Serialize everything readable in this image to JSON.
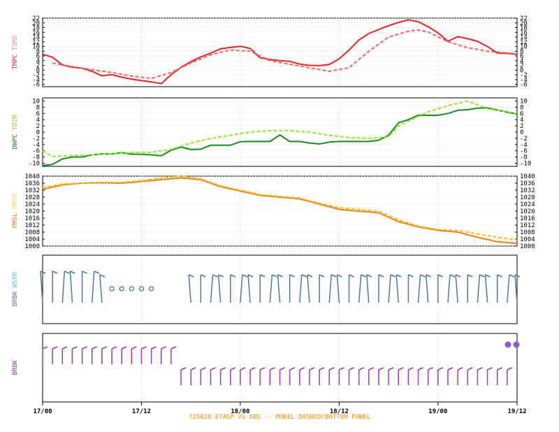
{
  "chart_data": {
    "type": "line",
    "x_ticks": [
      "17/00",
      "17/12",
      "18/00",
      "18/12",
      "19/00",
      "19/12"
    ],
    "caption": "725620  ETASP VS OBS -- MODEL DASHED/BOTTOM PANEL",
    "colors": {
      "temp": "#ee2222",
      "dew_obs": "#1a8a1a",
      "dew_model": "#88ee22",
      "pres_obs": "#f08010",
      "pres_model": "#f0c020",
      "wind_obs": "#4a76a4",
      "wind_model": "#9a38b0",
      "label_t2m": "#ff8080",
      "label_td2m": "#88dd00",
      "label_pmsm": "#ffd24d",
      "label_wsym": "#56c3f0"
    },
    "panels": [
      {
        "id": "temperature",
        "labels": [
          {
            "text": "TMPC",
            "color": "#ee2222"
          },
          {
            "text": "T2MS",
            "color": "#ff8080"
          }
        ],
        "yticks": [
          -6,
          -4,
          -2,
          0,
          2,
          4,
          6,
          8,
          10,
          12,
          14,
          16,
          18,
          20,
          22
        ],
        "ylim": [
          -7,
          22
        ],
        "series": [
          {
            "name": "TMPC",
            "style": "solid",
            "color": "#ee2222",
            "x": [
              0,
              1,
              2,
              3,
              4,
              5,
              6,
              7,
              8,
              9,
              10,
              11,
              12,
              13,
              14,
              15,
              16,
              17,
              18,
              19,
              20,
              21,
              22,
              23,
              24,
              25,
              26,
              27,
              28,
              29,
              30,
              31,
              32,
              33,
              34,
              35,
              36,
              37,
              38,
              39,
              40,
              41,
              42,
              43,
              44,
              45,
              46,
              47,
              48
            ],
            "y": [
              6.7,
              5.5,
              2.2,
              1.2,
              0.8,
              -0.5,
              -2.4,
              -1.9,
              -3,
              -3.8,
              -4.4,
              -5,
              -5.7,
              -1.9,
              1.2,
              3.6,
              5.6,
              7.2,
              9,
              9.6,
              10.1,
              9.2,
              5.2,
              4.5,
              4,
              3.7,
              2.6,
              2,
              1.9,
              2.4,
              4.8,
              8.5,
              12.8,
              15.5,
              17.2,
              18.8,
              20.2,
              21.3,
              20.5,
              18.4,
              15.8,
              12.2,
              14.2,
              13.3,
              12.2,
              10,
              7.2,
              7.1,
              6.7
            ]
          },
          {
            "name": "T2MS",
            "style": "dashed",
            "color": "#ff6060",
            "x": [
              1,
              3,
              5,
              7,
              9,
              11,
              13,
              15,
              17,
              19,
              21,
              23,
              25,
              27,
              29,
              31,
              33,
              35,
              37,
              38,
              39,
              41,
              43,
              45,
              47,
              48
            ],
            "y": [
              3,
              1.5,
              0.2,
              -1,
              -2.5,
              -3.5,
              -1,
              3,
              6.5,
              8.5,
              8,
              4,
              2.5,
              1,
              -0.5,
              1,
              8,
              14,
              16.5,
              17,
              16.2,
              12,
              9.5,
              8,
              7.3,
              6.8
            ]
          }
        ]
      },
      {
        "id": "dewpoint",
        "labels": [
          {
            "text": "DWPC",
            "color": "#1a8a1a"
          },
          {
            "text": "TD2M",
            "color": "#88dd00"
          }
        ],
        "yticks": [
          -10,
          -8,
          -6,
          -4,
          -2,
          0,
          2,
          4,
          6,
          8,
          10
        ],
        "ylim": [
          -11,
          11
        ],
        "series": [
          {
            "name": "DWPC",
            "style": "solid",
            "color": "#1a8a1a",
            "x": [
              0,
              1,
              2,
              3,
              4,
              5,
              6,
              7,
              8,
              9,
              10,
              11,
              12,
              13,
              14,
              15,
              16,
              17,
              18,
              19,
              20,
              21,
              22,
              23,
              24,
              25,
              26,
              27,
              28,
              29,
              30,
              31,
              32,
              33,
              34,
              35,
              36,
              37,
              38,
              39,
              40,
              41,
              42,
              43,
              44,
              45,
              46,
              47,
              48
            ],
            "y": [
              -10.7,
              -10.4,
              -8.6,
              -8,
              -8,
              -7.3,
              -7,
              -7,
              -6.6,
              -7.1,
              -7.1,
              -7.3,
              -7.6,
              -5.8,
              -4.8,
              -5.6,
              -5.5,
              -4.2,
              -4.2,
              -4.2,
              -3.1,
              -3,
              -3,
              -3,
              -0.9,
              -3,
              -3,
              -3.5,
              -3.8,
              -3.2,
              -3,
              -3,
              -3,
              -3,
              -2.6,
              -1,
              3,
              4,
              5.4,
              5.4,
              5.4,
              6,
              7,
              7.2,
              7.7,
              7.8,
              7.1,
              6.4,
              5.8
            ]
          },
          {
            "name": "TD2M",
            "style": "dashed",
            "color": "#88ee22",
            "x": [
              0,
              1,
              3,
              5,
              7,
              9,
              11,
              13,
              15,
              17,
              19,
              21,
              23,
              25,
              27,
              29,
              31,
              33,
              35,
              36,
              37,
              38,
              39,
              41,
              43,
              45,
              47,
              48
            ],
            "y": [
              -6,
              -7.8,
              -7.5,
              -7.3,
              -7,
              -6.5,
              -6.5,
              -5.5,
              -3.5,
              -2,
              -1,
              0,
              0.5,
              0.5,
              0,
              -1,
              -1.8,
              -2,
              -1.5,
              2,
              3.5,
              5,
              6.5,
              8.5,
              10,
              7.5,
              6.5,
              6
            ]
          }
        ]
      },
      {
        "id": "pressure",
        "labels": [
          {
            "text": "PMSL",
            "color": "#f08010"
          },
          {
            "text": "PMSM",
            "color": "#ffd24d"
          }
        ],
        "yticks": [
          1000,
          1004,
          1008,
          1012,
          1016,
          1020,
          1024,
          1028,
          1032,
          1036,
          1040
        ],
        "ylim": [
          1000,
          1040
        ],
        "series": [
          {
            "name": "PMSL",
            "style": "solid",
            "color": "#f08010",
            "x": [
              0,
              2,
              4,
              6,
              8,
              10,
              12,
              14,
              16,
              18,
              20,
              22,
              24,
              26,
              28,
              30,
              32,
              34,
              36,
              38,
              40,
              42,
              44,
              46,
              48
            ],
            "y": [
              1032.5,
              1035,
              1036,
              1036.2,
              1036,
              1037,
              1038,
              1039,
              1038,
              1034,
              1031.5,
              1029,
              1028,
              1027,
              1024,
              1021,
              1020,
              1019,
              1014,
              1011,
              1009,
              1008,
              1005,
              1002.5,
              1001.5
            ]
          },
          {
            "name": "PMSM",
            "style": "dashed",
            "color": "#f0c020",
            "x": [
              0,
              2,
              4,
              6,
              8,
              10,
              12,
              14,
              16,
              18,
              20,
              22,
              24,
              26,
              28,
              30,
              32,
              34,
              36,
              38,
              40,
              42,
              44,
              46,
              48
            ],
            "y": [
              1033.5,
              1035.5,
              1036,
              1036.5,
              1036.5,
              1037.5,
              1039,
              1040,
              1038.5,
              1034.5,
              1032,
              1029.5,
              1028.5,
              1027.5,
              1024.5,
              1022,
              1021,
              1020,
              1015,
              1011.5,
              1009.5,
              1009,
              1007,
              1005,
              1003.5
            ]
          }
        ]
      },
      {
        "id": "wind_obs",
        "labels": [
          {
            "text": "BRBK",
            "color": "#4a76a4"
          },
          {
            "text": "WSYM",
            "color": "#56c3f0"
          }
        ],
        "color": "#4a76a4"
      },
      {
        "id": "wind_model",
        "labels": [
          {
            "text": "BRBK",
            "color": "#9a38b0"
          }
        ],
        "color": "#9a38b0"
      }
    ]
  }
}
